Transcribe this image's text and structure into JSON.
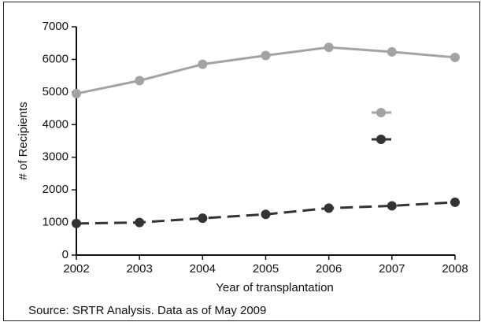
{
  "chart_data": {
    "type": "line",
    "x_label": "Year of transplantation",
    "y_label": "# of Recipients",
    "note": "Source: SRTR Analysis. Data as of May 2009",
    "x": [
      2002,
      2003,
      2004,
      2005,
      2006,
      2007,
      2008
    ],
    "series": [
      {
        "color": "#a3a3a3",
        "dashed": false,
        "values": [
          4950,
          5350,
          5850,
          6120,
          6370,
          6230,
          6060
        ]
      },
      {
        "color": "#333333",
        "dashed": true,
        "values": [
          970,
          1000,
          1130,
          1250,
          1440,
          1510,
          1620
        ]
      }
    ],
    "xlim": [
      2002,
      2008
    ],
    "xticks": [
      2002,
      2003,
      2004,
      2005,
      2006,
      2007,
      2008
    ],
    "ylim": [
      0,
      7000
    ],
    "yticks": [
      0,
      1000,
      2000,
      3000,
      4000,
      5000,
      6000,
      7000
    ],
    "legend": "right"
  }
}
